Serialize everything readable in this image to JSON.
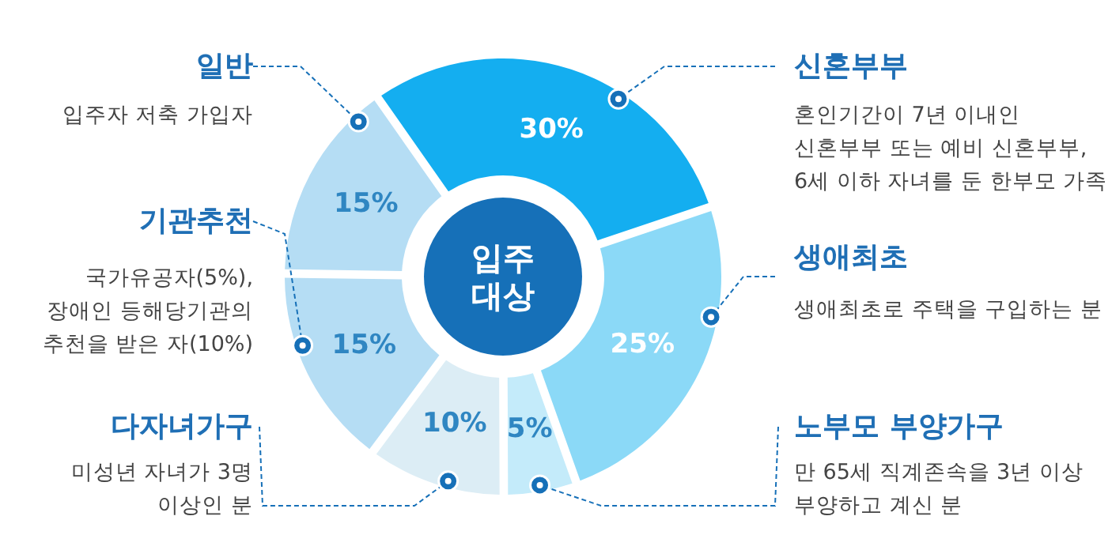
{
  "chart_data": {
    "type": "donut",
    "title": "입주 대상",
    "categories": [
      "신혼부부",
      "생애최초",
      "노부모 부양가구",
      "다자녀가구",
      "기관추천",
      "일반"
    ],
    "values": [
      30,
      25,
      5,
      10,
      15,
      15
    ],
    "colors": [
      "#14aef0",
      "#8bd9f7",
      "#c4ebfa",
      "#dcedf5",
      "#b5ddf4",
      "#b5ddf4"
    ],
    "value_labels": [
      "30%",
      "25%",
      "5%",
      "10%",
      "15%",
      "15%"
    ],
    "annotations": [
      "혼인기간이 7년 이내인\n신혼부부 또는 예비 신혼부부,\n6세 이하 자녀를 둔 한부모 가족",
      "생애최초로 주택을 구입하는 분",
      "만 65세 직계존속을 3년 이상\n부양하고 계신 분",
      "미성년 자녀가 3명\n이상인 분",
      "국가유공자(5%),\n장애인 등해당기관의\n추천을 받은 자(10%)",
      "입주자 저축 가입자"
    ],
    "legend": false
  }
}
